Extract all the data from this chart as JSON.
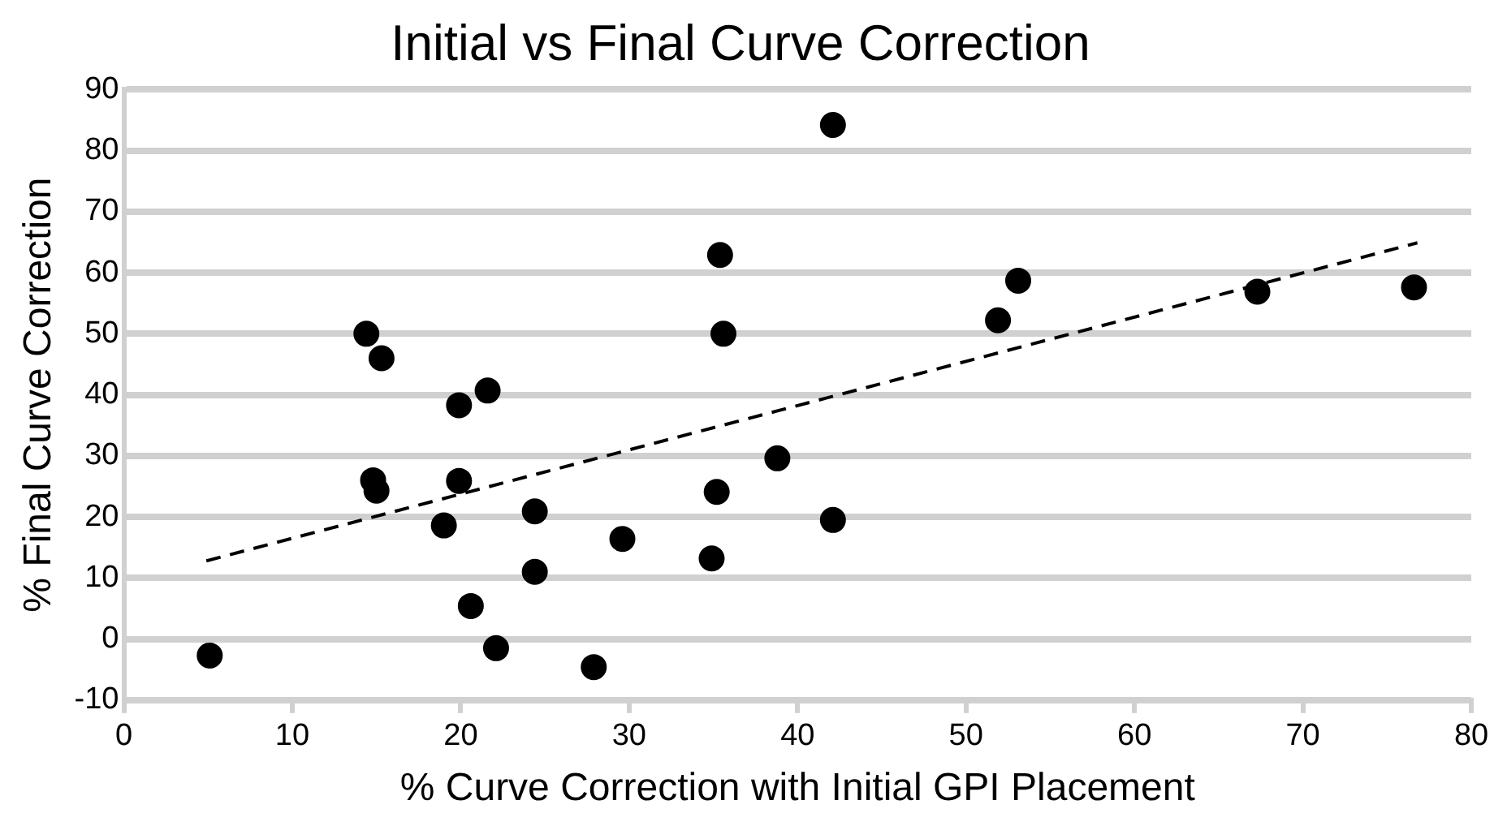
{
  "chart_data": {
    "type": "scatter",
    "title": "Initial vs Final Curve Correction",
    "xlabel": "% Curve Correction with Initial GPI Placement",
    "ylabel": "% Final Curve Correction",
    "xlim": [
      0,
      80
    ],
    "xticks": [
      0,
      10,
      20,
      30,
      40,
      50,
      60,
      70,
      80
    ],
    "ylim": [
      -10,
      90
    ],
    "yticks": [
      -10,
      0,
      10,
      20,
      30,
      40,
      50,
      60,
      70,
      80,
      90
    ],
    "grid": "y",
    "marker": "circle",
    "series": [
      {
        "type": "scatter",
        "color": "#000000",
        "x": [
          5.1,
          14.4,
          15.3,
          14.8,
          15.0,
          19.0,
          19.9,
          19.9,
          20.6,
          21.6,
          22.1,
          24.4,
          24.4,
          27.9,
          29.6,
          34.9,
          35.2,
          35.4,
          35.6,
          38.8,
          42.1,
          42.1,
          51.9,
          53.1,
          67.3,
          76.6
        ],
        "values": [
          -2.7,
          50.0,
          46.0,
          26.0,
          24.3,
          18.6,
          38.3,
          25.9,
          5.4,
          40.7,
          -1.5,
          20.9,
          11.0,
          -4.6,
          16.4,
          13.2,
          24.1,
          62.9,
          50.0,
          29.6,
          84.2,
          19.5,
          52.2,
          58.7,
          56.9,
          57.6
        ]
      },
      {
        "type": "line",
        "color": "#000000",
        "marker": "none",
        "line_style": "dashed",
        "x": [
          4.9,
          76.8
        ],
        "values": [
          12.8,
          64.9
        ]
      }
    ]
  }
}
